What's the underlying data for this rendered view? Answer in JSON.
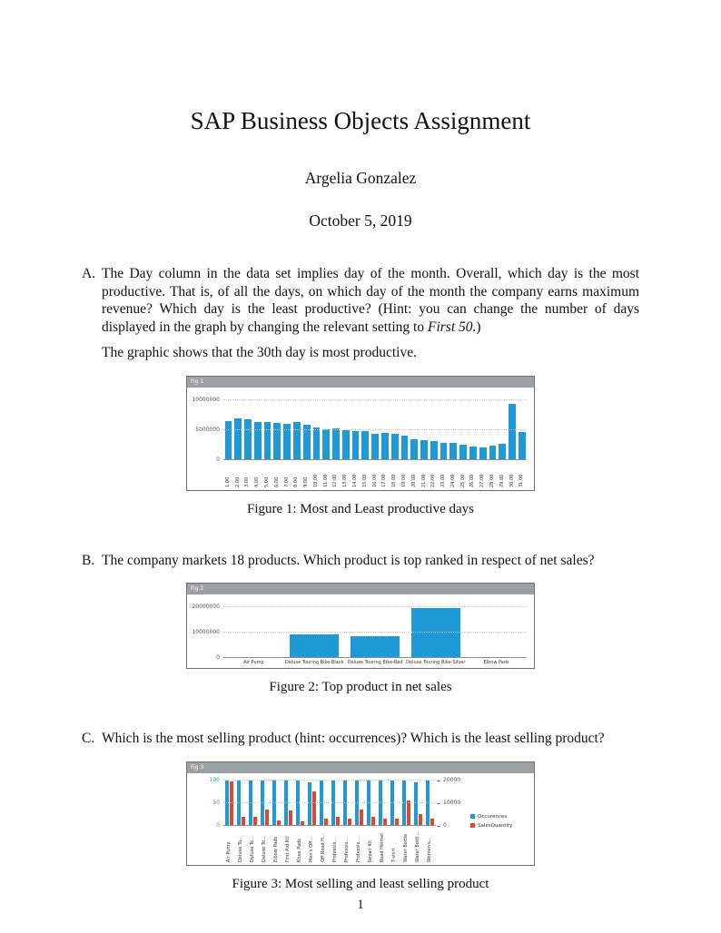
{
  "title": "SAP Business Objects Assignment",
  "author": "Argelia Gonzalez",
  "date": "October 5, 2019",
  "page_number": "1",
  "questions": [
    {
      "label": "A.",
      "text_pre": "The Day column in the data set implies day of the month. Overall, which day is the most productive. That is, of all the days, on which day of the month the company earns maximum revenue? Which day is the least productive? (Hint: you can change the number of days displayed in the graph by changing the relevant setting to ",
      "text_italic": "First 50.",
      "text_post": ")",
      "followup": "The graphic shows that the 30th day is most productive."
    },
    {
      "label": "B.",
      "text": "The company markets 18 products. Which product is top ranked in respect of net sales?"
    },
    {
      "label": "C.",
      "text": "Which is the most selling product (hint: occurrences)? Which is the least selling product?"
    }
  ],
  "figures": [
    {
      "header_label": "Fig 1",
      "caption": "Figure 1: Most and Least productive days"
    },
    {
      "header_label": "Fig 2",
      "caption": "Figure 2: Top product in net sales"
    },
    {
      "header_label": "Fig 3",
      "caption": "Figure 3: Most selling and least selling product"
    }
  ],
  "chart_data": [
    {
      "type": "bar",
      "bar_color": "#1f9ad6",
      "ymax": 11000000,
      "yticks": [
        0,
        5000000,
        10000000
      ],
      "ytick_labels": [
        "0",
        "5000000",
        "10000000"
      ],
      "categories": [
        "1.00",
        "2.00",
        "3.00",
        "4.00",
        "5.00",
        "6.00",
        "7.00",
        "8.00",
        "9.00",
        "10.00",
        "11.00",
        "12.00",
        "13.00",
        "14.00",
        "15.00",
        "16.00",
        "17.00",
        "18.00",
        "19.00",
        "20.00",
        "21.00",
        "22.00",
        "23.00",
        "24.00",
        "25.00",
        "26.00",
        "27.00",
        "28.00",
        "29.00",
        "30.00",
        "31.00"
      ],
      "values": [
        6500000,
        6900000,
        6800000,
        6300000,
        6400000,
        6200000,
        6100000,
        6300000,
        5900000,
        5400000,
        5100000,
        5300000,
        5000000,
        4900000,
        4800000,
        4400000,
        4500000,
        4300000,
        4100000,
        3500000,
        3300000,
        3100000,
        2900000,
        2800000,
        2600000,
        2300000,
        2100000,
        2400000,
        2700000,
        9400000,
        4600000
      ]
    },
    {
      "type": "bar",
      "bar_color": "#1f9ad6",
      "ymax": 22000000,
      "yticks": [
        0,
        10000000,
        20000000
      ],
      "ytick_labels": [
        "0",
        "10000000",
        "20000000"
      ],
      "categories": [
        "Air Pump",
        "Deluxe Touring Bike-Black",
        "Deluxe Touring Bike-Red",
        "Deluxe Touring Bike-Silver",
        "Elbow Pads"
      ],
      "values": [
        200000,
        9200000,
        8700000,
        19600000,
        180000
      ]
    },
    {
      "type": "bar",
      "categories": [
        "Air Pump",
        "Deluxe To...",
        "Deluxe To...",
        "Deluxe To...",
        "Elbow Pads",
        "First Aid Kit",
        "Knee Pads",
        "Men's Off...",
        "Off Road H...",
        "Professio...",
        "Professio...",
        "Professio...",
        "Repair Kit",
        "Road Helmet",
        "T-shirt",
        "Water Bottle",
        "Water Bottl...",
        "Women's..."
      ],
      "series": [
        {
          "name": "Occurences",
          "color": "#1f9ad6",
          "ymax": 100,
          "values": [
            100,
            100,
            100,
            100,
            100,
            100,
            100,
            95,
            100,
            100,
            100,
            100,
            100,
            100,
            100,
            100,
            95,
            100
          ]
        },
        {
          "name": "SalesQuantity",
          "color": "#e0472e",
          "ymax": 20000,
          "values": [
            19400,
            4000,
            4000,
            7000,
            2400,
            6600,
            2000,
            15000,
            3000,
            4000,
            3000,
            7000,
            4000,
            3000,
            3000,
            11000,
            5000,
            3000
          ]
        }
      ],
      "left_axis": {
        "ticks": [
          0,
          50,
          100
        ],
        "labels": [
          "0",
          "50",
          "100"
        ],
        "max": 100,
        "color": "#1f9ad6"
      },
      "right_axis": {
        "ticks": [
          0,
          10000,
          20000
        ],
        "labels": [
          "0",
          "10000",
          "20000"
        ],
        "max": 20000
      },
      "legend": [
        "Occurences",
        "SalesQuantity"
      ],
      "legend_position": "right"
    }
  ]
}
